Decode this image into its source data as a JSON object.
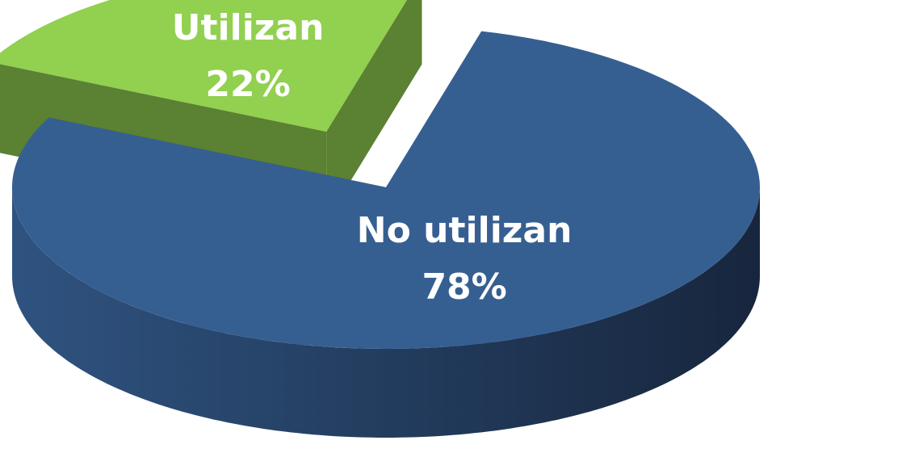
{
  "chart_data": {
    "type": "pie3d",
    "categories": [
      "No utilizan",
      "Utilizan"
    ],
    "values": [
      78,
      22
    ],
    "value_labels": [
      "78%",
      "22%"
    ],
    "colors": [
      "#365f91",
      "#92d050"
    ],
    "exploded": [
      false,
      true
    ]
  }
}
